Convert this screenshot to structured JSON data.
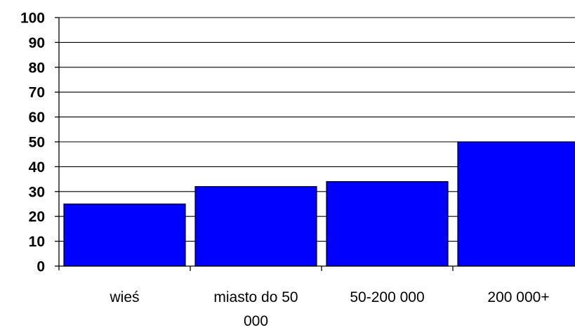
{
  "chart_data": {
    "type": "bar",
    "categories": [
      "wieś",
      "miasto do 50 000",
      "50-200 000",
      "200 000+"
    ],
    "category_label_lines": [
      [
        "wieś"
      ],
      [
        "miasto do 50",
        "000"
      ],
      [
        "50-200 000"
      ],
      [
        "200 000+"
      ]
    ],
    "values": [
      25,
      32,
      34,
      50
    ],
    "ylim": [
      0,
      100
    ],
    "yticks": [
      0,
      10,
      20,
      30,
      40,
      50,
      60,
      70,
      80,
      90,
      100
    ],
    "grid": true,
    "bar_color": "#0000FF",
    "title": "",
    "xlabel": "",
    "ylabel": ""
  }
}
